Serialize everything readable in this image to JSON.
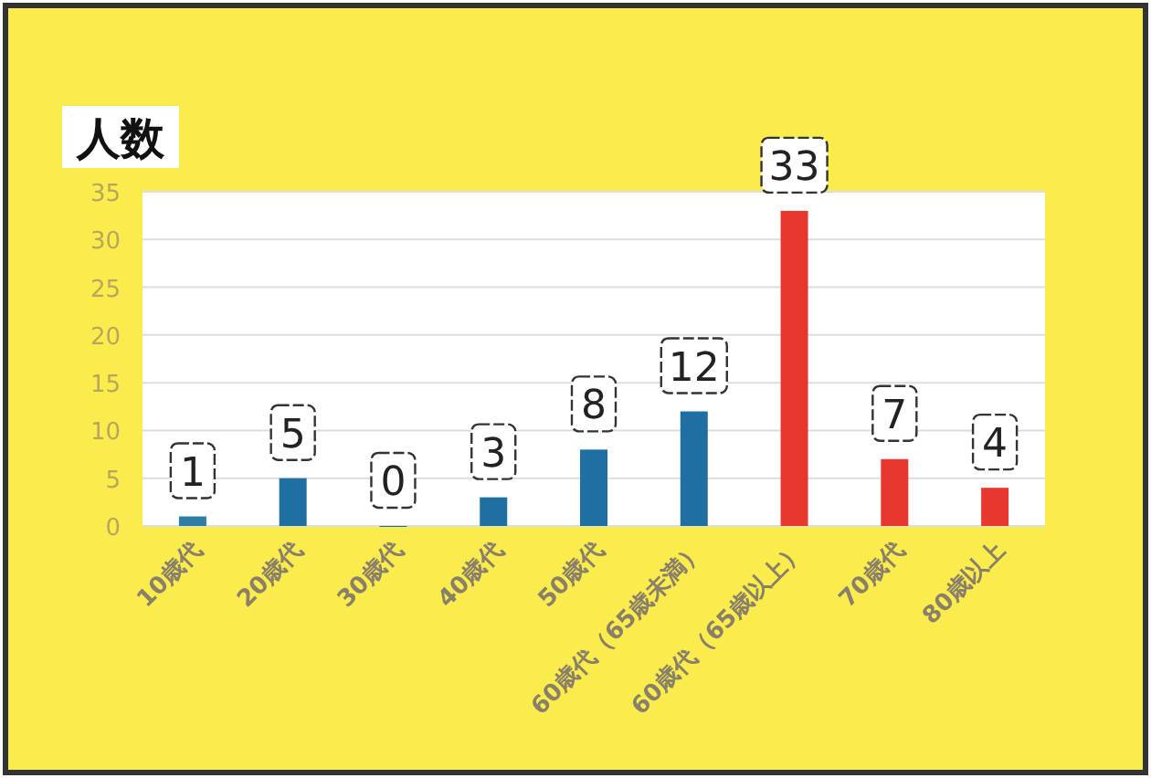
{
  "chart_data": {
    "type": "bar",
    "ylabel": "人数",
    "categories": [
      "10歳代",
      "20歳代",
      "30歳代",
      "40歳代",
      "50歳代",
      "60歳代（65歳未満）",
      "60歳代（65歳以上）",
      "70歳代",
      "80歳以上"
    ],
    "values": [
      1,
      5,
      0,
      3,
      8,
      12,
      33,
      7,
      4
    ],
    "colors": [
      "#2e7ca8",
      "#1f6fa3",
      "#1f6fa3",
      "#1f6fa3",
      "#1f6fa3",
      "#1f6fa3",
      "#e8382e",
      "#e8382e",
      "#e8382e"
    ],
    "ylim": [
      0,
      35
    ],
    "yticks": [
      0,
      5,
      10,
      15,
      20,
      25,
      30,
      35
    ],
    "grid": "y",
    "data_labels": true
  }
}
